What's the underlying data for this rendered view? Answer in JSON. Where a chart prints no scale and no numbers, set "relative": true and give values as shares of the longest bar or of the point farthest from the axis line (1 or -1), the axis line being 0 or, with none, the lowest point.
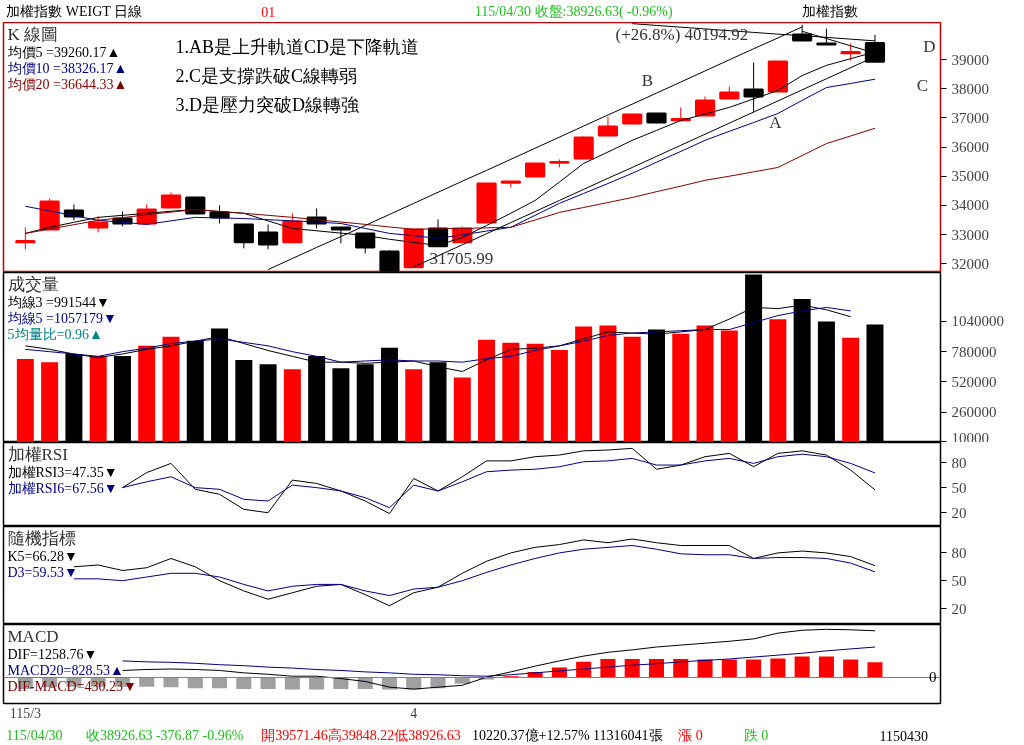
{
  "chart_data": [
    {
      "type": "other",
      "annotations": [
        "加權指數 WEIGT 日線",
        "01",
        "115/04/30 收盤:38926.63( -0.96%)",
        "加權指數"
      ],
      "colors": [
        "#000000",
        "#ff0000",
        "#22bb22",
        "#000000"
      ]
    },
    {
      "type": "candlestick",
      "title": "K 線圖",
      "categories": [
        null,
        null,
        null,
        null,
        null,
        null,
        null,
        null,
        null,
        null,
        null,
        null,
        null,
        null,
        null,
        null,
        null,
        null,
        null,
        null,
        null,
        null,
        null,
        null,
        null,
        null,
        null,
        null,
        null,
        null,
        null,
        null,
        null,
        null,
        null,
        null
      ],
      "ohlc": [
        [
          32740,
          33246,
          32493,
          32780
        ],
        [
          33178,
          34240,
          33150,
          34137
        ],
        [
          33828,
          34034,
          33486,
          33623
        ],
        [
          33246,
          33623,
          33075,
          33417
        ],
        [
          33554,
          33794,
          33280,
          33383
        ],
        [
          33383,
          34034,
          33383,
          33863
        ],
        [
          33931,
          34445,
          33931,
          34342
        ],
        [
          34274,
          34300,
          33700,
          33726
        ],
        [
          33760,
          34000,
          33383,
          33589
        ],
        [
          33349,
          33349,
          32527,
          32733
        ],
        [
          33075,
          33349,
          32493,
          32664
        ],
        [
          32733,
          33726,
          32733,
          33452
        ],
        [
          33589,
          33897,
          33212,
          33383
        ],
        [
          33246,
          33260,
          32698,
          33178
        ],
        [
          33041,
          33041,
          32356,
          32561
        ],
        [
          32424,
          32458,
          31705.99,
          31760
        ],
        [
          31876,
          33178,
          31842,
          33178
        ],
        [
          33212,
          33520,
          32596,
          32596
        ],
        [
          32733,
          33280,
          32733,
          33212
        ],
        [
          33417,
          34753,
          33417,
          34753
        ],
        [
          34780,
          34830,
          34616,
          34820
        ],
        [
          34993,
          35438,
          34993,
          35438
        ],
        [
          35460,
          35575,
          35301,
          35490
        ],
        [
          35609,
          36363,
          35609,
          36329
        ],
        [
          36397,
          37048,
          36397,
          36705
        ],
        [
          36808,
          37116,
          36780,
          37116
        ],
        [
          37151,
          37151,
          36808,
          36842
        ],
        [
          36920,
          37356,
          36877,
          36960
        ],
        [
          37082,
          37733,
          37082,
          37596
        ],
        [
          37664,
          38075,
          37664,
          37870
        ],
        [
          37973,
          38897,
          37185,
          37733
        ],
        [
          37904,
          38950,
          37904,
          38932
        ],
        [
          39856,
          40194.92,
          39651,
          39651
        ],
        [
          39548,
          40062,
          39520,
          39520
        ],
        [
          39220,
          39548,
          38966,
          39260
        ],
        [
          39571.46,
          39848.22,
          38926.63,
          38926.63
        ]
      ],
      "colors": [
        "#ff0000",
        "#ff0000",
        "#000000",
        "#ff0000",
        "#000000",
        "#ff0000",
        "#ff0000",
        "#000000",
        "#000000",
        "#000000",
        "#000000",
        "#ff0000",
        "#000000",
        "#000000",
        "#000000",
        "#000000",
        "#ff0000",
        "#000000",
        "#ff0000",
        "#ff0000",
        "#ff0000",
        "#ff0000",
        "#ff0000",
        "#ff0000",
        "#ff0000",
        "#ff0000",
        "#000000",
        "#ff0000",
        "#ff0000",
        "#ff0000",
        "#000000",
        "#ff0000",
        "#000000",
        "#000000",
        "#ff0000",
        "#000000"
      ],
      "series": [
        {
          "type": "line",
          "name": "均價5 =39260.17▲",
          "color": "#000000",
          "values": [
            33040,
            33250,
            33420,
            33590,
            33660,
            33730,
            33800,
            33860,
            33790,
            33730,
            33470,
            33210,
            33130,
            33050,
            32970,
            32840,
            32730,
            32630,
            32900,
            33310,
            33730,
            34170,
            34800,
            35440,
            35830,
            36230,
            36570,
            36910,
            37130,
            37360,
            37650,
            37940,
            38450,
            38800,
            39030,
            39260.17
          ]
        },
        {
          "type": "line",
          "name": "均價10 =38326.17▲",
          "color": "#000080",
          "values": [
            33970,
            33810,
            33650,
            33490,
            33420,
            33350,
            33470,
            33590,
            33570,
            33550,
            33510,
            33470,
            33430,
            33380,
            33210,
            33040,
            32960,
            32870,
            32990,
            33120,
            33250,
            33660,
            34070,
            34410,
            34750,
            35100,
            35480,
            35850,
            36230,
            36540,
            36840,
            37150,
            37600,
            38040,
            38180,
            38326.17
          ]
        },
        {
          "type": "line",
          "name": "均價20 =36644.33▲",
          "color": "#800000",
          "values": [
            33040,
            33190,
            33340,
            33490,
            33580,
            33680,
            33770,
            33860,
            33790,
            33730,
            33660,
            33590,
            33510,
            33430,
            33350,
            33260,
            33180,
            33200,
            33210,
            33230,
            33250,
            33500,
            33760,
            33930,
            34100,
            34270,
            34470,
            34660,
            34860,
            35000,
            35150,
            35300,
            35710,
            36120,
            36380,
            36644.33
          ]
        },
        {
          "type": "line",
          "color": "#000000",
          "values": [
            null,
            null,
            null,
            null,
            null,
            null,
            null,
            null,
            null,
            null,
            31800,
            32180,
            32560,
            32930,
            33310,
            33690,
            34070,
            34450,
            34830,
            35200,
            35580,
            35960,
            36340,
            36720,
            37100,
            37470,
            37850,
            38230,
            38610,
            38990,
            39370,
            39740,
            40120,
            null,
            null,
            null
          ]
        },
        {
          "type": "line",
          "color": "#000000",
          "values": [
            null,
            null,
            null,
            null,
            null,
            null,
            null,
            null,
            null,
            null,
            null,
            null,
            null,
            null,
            null,
            null,
            31890,
            32270,
            32650,
            33030,
            33410,
            33790,
            34170,
            34550,
            34930,
            35300,
            35680,
            36060,
            36440,
            36820,
            37200,
            37580,
            37960,
            38340,
            38720,
            39100
          ]
        },
        {
          "type": "line",
          "color": "#000000",
          "values": [
            null,
            null,
            null,
            null,
            null,
            null,
            null,
            null,
            null,
            null,
            null,
            null,
            null,
            null,
            null,
            null,
            null,
            null,
            null,
            null,
            null,
            null,
            null,
            null,
            null,
            40230,
            40170,
            40110,
            40050,
            39990,
            39930,
            39870,
            39820,
            39760,
            39700,
            39640
          ]
        },
        {
          "type": "line",
          "color": "#000000",
          "values": [
            null,
            null,
            null,
            null,
            null,
            null,
            null,
            null,
            null,
            null,
            null,
            null,
            null,
            null,
            null,
            null,
            null,
            null,
            null,
            null,
            null,
            null,
            null,
            null,
            null,
            null,
            null,
            null,
            null,
            null,
            null,
            null,
            39970,
            39720,
            39470,
            39220
          ]
        }
      ],
      "ylim": [
        31700,
        40270
      ],
      "yticks": [
        32000,
        33000,
        34000,
        35000,
        36000,
        37000,
        38000,
        39000
      ],
      "tick_labels": "y",
      "legend": "top left",
      "annotations": [
        "1.AB是上升軌道CD是下降軌道",
        "2.C是支撐跌破C線轉弱",
        "3.D是壓力突破D線轉強",
        "(+26.8%) 40194.92",
        "31705.99",
        "A",
        "B",
        "C",
        "D"
      ]
    },
    {
      "type": "bar",
      "title": "成交量",
      "categories": [
        null,
        null,
        null,
        null,
        null,
        null,
        null,
        null,
        null,
        null,
        null,
        null,
        null,
        null,
        null,
        null,
        null,
        null,
        null,
        null,
        null,
        null,
        null,
        null,
        null,
        null,
        null,
        null,
        null,
        null,
        null,
        null,
        null,
        null,
        null,
        null
      ],
      "series": [
        {
          "type": "bar",
          "values": [
            717000,
            690000,
            760000,
            743000,
            743000,
            830000,
            909000,
            874000,
            979000,
            708000,
            673000,
            629000,
            743000,
            638000,
            673000,
            813000,
            629000,
            690000,
            559000,
            883000,
            857000,
            848000,
            795000,
            996000,
            1005000,
            909000,
            970000,
            935000,
            1005000,
            961000,
            1442000,
            1058000,
            1232000,
            1040000,
            900000,
            1014000
          ],
          "colors": [
            "#ff0000",
            "#ff0000",
            "#000000",
            "#ff0000",
            "#000000",
            "#ff0000",
            "#ff0000",
            "#000000",
            "#000000",
            "#000000",
            "#000000",
            "#ff0000",
            "#000000",
            "#000000",
            "#000000",
            "#000000",
            "#ff0000",
            "#000000",
            "#ff0000",
            "#ff0000",
            "#ff0000",
            "#ff0000",
            "#ff0000",
            "#ff0000",
            "#ff0000",
            "#ff0000",
            "#000000",
            "#ff0000",
            "#ff0000",
            "#ff0000",
            "#000000",
            "#ff0000",
            "#000000",
            "#000000",
            "#ff0000",
            "#000000"
          ]
        },
        {
          "type": "line",
          "name": "均線3 =991544▼",
          "color": "#000000",
          "values": [
            830000,
            800000,
            760000,
            730000,
            760000,
            800000,
            830000,
            870000,
            910000,
            850000,
            790000,
            740000,
            690000,
            690000,
            680000,
            690000,
            700000,
            650000,
            610000,
            710000,
            800000,
            810000,
            830000,
            890000,
            950000,
            940000,
            930000,
            950000,
            970000,
            1060000,
            1160000,
            1150000,
            1180000,
            1140000,
            1080000,
            null
          ]
        },
        {
          "type": "line",
          "name": "均線5 =1057179▼",
          "color": "#000080",
          "values": [
            800000,
            780000,
            760000,
            740000,
            780000,
            810000,
            850000,
            870000,
            890000,
            860000,
            830000,
            780000,
            740000,
            690000,
            700000,
            710000,
            700000,
            700000,
            690000,
            720000,
            740000,
            790000,
            830000,
            870000,
            920000,
            940000,
            950000,
            960000,
            970000,
            970000,
            1030000,
            1090000,
            1130000,
            1160000,
            1130000,
            null
          ]
        }
      ],
      "ylim": [
        0,
        1460000
      ],
      "yticks": [
        10000,
        260000,
        520000,
        780000,
        1040000
      ],
      "tick_labels": "y",
      "legend": "top left",
      "annotations": [
        "5均量比=0.96▲"
      ]
    },
    {
      "type": "line",
      "title": "加權RSI",
      "categories": [
        null,
        null,
        null,
        null,
        null,
        null,
        null,
        null,
        null,
        null,
        null,
        null,
        null,
        null,
        null,
        null,
        null,
        null,
        null,
        null,
        null,
        null,
        null,
        null,
        null,
        null,
        null,
        null,
        null,
        null,
        null,
        null,
        null,
        null,
        null,
        null
      ],
      "series": [
        {
          "name": "加權RSI3=47.35▼",
          "color": "#000000",
          "values": [
            null,
            null,
            null,
            null,
            50,
            68,
            79,
            48,
            42,
            24,
            20,
            59,
            55,
            46,
            34,
            19,
            61,
            46,
            63,
            82,
            82,
            87,
            89,
            94,
            95,
            97,
            72,
            77,
            87,
            91,
            75,
            91,
            94,
            89,
            71,
            47.35
          ]
        },
        {
          "name": "加權RSI6=67.56▼",
          "color": "#000080",
          "values": [
            null,
            null,
            null,
            null,
            50,
            57,
            63,
            50,
            48,
            36,
            34,
            53,
            50,
            46,
            38,
            26,
            53,
            46,
            57,
            69,
            71,
            72,
            75,
            81,
            82,
            85,
            77,
            77,
            82,
            85,
            79,
            87,
            90,
            87,
            79,
            67.56
          ]
        }
      ],
      "ylim": [
        3.5,
        104
      ],
      "yticks": [
        20,
        50,
        80
      ],
      "tick_labels": "y",
      "legend": "top left"
    },
    {
      "type": "line",
      "title": "隨機指標",
      "categories": [
        null,
        null,
        null,
        null,
        null,
        null,
        null,
        null,
        null,
        null,
        null,
        null,
        null,
        null,
        null,
        null,
        null,
        null,
        null,
        null,
        null,
        null,
        null,
        null,
        null,
        null,
        null,
        null,
        null,
        null,
        null,
        null,
        null,
        null,
        null,
        null
      ],
      "series": [
        {
          "name": "K5=66.28▼",
          "color": "#000000",
          "values": [
            null,
            null,
            65,
            67,
            61,
            64,
            74,
            65,
            50,
            39,
            30,
            37,
            44,
            46,
            35,
            23,
            37,
            43,
            58,
            71,
            80,
            86,
            89,
            94,
            91,
            95,
            91,
            88,
            88,
            88,
            74,
            80,
            82,
            80,
            76,
            66.28
          ]
        },
        {
          "name": "D3=59.53▼",
          "color": "#000080",
          "values": [
            null,
            null,
            52,
            52,
            50,
            54,
            58,
            58,
            54,
            46,
            39,
            44,
            46,
            46,
            39,
            34,
            41,
            43,
            50,
            59,
            67,
            74,
            80,
            84,
            86,
            88,
            84,
            79,
            78,
            78,
            74,
            75,
            75,
            74,
            69,
            59.53
          ]
        }
      ],
      "ylim": [
        2.75,
        108.5
      ],
      "yticks": [
        20,
        50,
        80
      ],
      "tick_labels": "y",
      "legend": "top left"
    },
    {
      "type": "bar",
      "title": "MACD",
      "relative": true,
      "categories": [
        "115/3",
        null,
        null,
        null,
        null,
        null,
        null,
        null,
        null,
        null,
        null,
        null,
        null,
        null,
        null,
        null,
        "4",
        null,
        null,
        null,
        null,
        null,
        null,
        null,
        null,
        null,
        null,
        null,
        null,
        null,
        null,
        null,
        null,
        null,
        null,
        null
      ],
      "series": [
        {
          "type": "line",
          "name": "DIF=1258.76▼",
          "color": "#000000",
          "values": [
            null,
            null,
            null,
            null,
            0.14,
            0.16,
            0.17,
            0.16,
            0.14,
            0.09,
            0.06,
            0.02,
            0.02,
            -0.03,
            -0.09,
            -0.21,
            -0.25,
            -0.21,
            -0.17,
            0,
            0.11,
            0.23,
            0.34,
            0.44,
            0.52,
            0.57,
            0.63,
            0.67,
            0.71,
            0.75,
            0.8,
            0.92,
            0.98,
            1.0,
            0.99,
            0.97
          ]
        },
        {
          "type": "line",
          "name": "MACD20=828.53▲",
          "color": "#000080",
          "values": [
            null,
            null,
            null,
            null,
            0.34,
            0.32,
            0.31,
            0.29,
            0.26,
            0.24,
            0.21,
            0.19,
            0.16,
            0.14,
            0.11,
            0.09,
            0.06,
            0.05,
            0.03,
            0.02,
            0.05,
            0.09,
            0.13,
            0.17,
            0.21,
            0.25,
            0.28,
            0.32,
            0.35,
            0.38,
            0.42,
            0.46,
            0.5,
            0.55,
            0.59,
            0.63
          ]
        },
        {
          "type": "bar",
          "name": "DIF-MACD=430.23▼",
          "color": "#800000",
          "values": [
            -0.25,
            -0.21,
            -0.2,
            -0.2,
            -0.2,
            -0.2,
            -0.21,
            -0.23,
            -0.23,
            -0.25,
            -0.25,
            -0.26,
            -0.26,
            -0.25,
            -0.25,
            -0.26,
            -0.26,
            -0.23,
            -0.14,
            -0.05,
            0.02,
            0.11,
            0.2,
            0.32,
            0.38,
            0.38,
            0.38,
            0.38,
            0.37,
            0.37,
            0.37,
            0.39,
            0.43,
            0.43,
            0.37,
            0.31
          ],
          "colors": [
            "#a0a0a0",
            "#a0a0a0",
            "#a0a0a0",
            "#a0a0a0",
            "#a0a0a0",
            "#a0a0a0",
            "#a0a0a0",
            "#a0a0a0",
            "#a0a0a0",
            "#a0a0a0",
            "#a0a0a0",
            "#a0a0a0",
            "#a0a0a0",
            "#a0a0a0",
            "#a0a0a0",
            "#a0a0a0",
            "#a0a0a0",
            "#a0a0a0",
            "#a0a0a0",
            "#a0a0a0",
            "#ff0000",
            "#ff0000",
            "#ff0000",
            "#ff0000",
            "#ff0000",
            "#ff0000",
            "#ff0000",
            "#ff0000",
            "#ff0000",
            "#ff0000",
            "#ff0000",
            "#ff0000",
            "#ff0000",
            "#ff0000",
            "#ff0000",
            "#ff0000"
          ]
        }
      ],
      "tick_labels": "x",
      "legend": "left",
      "annotations": [
        "0"
      ]
    },
    {
      "type": "other",
      "annotations": [
        "115/04/30",
        "收38926.63 -376.87 -0.96%",
        "開39571.46高39848.22低38926.63",
        "10220.37億+12.57% 11316041張",
        "漲 0",
        "跌 0",
        "1150430"
      ],
      "colors": [
        "#22bb22",
        "#22bb22",
        "#ff0000",
        "#000000",
        "#ff0000",
        "#22bb22",
        "#000000"
      ]
    }
  ]
}
